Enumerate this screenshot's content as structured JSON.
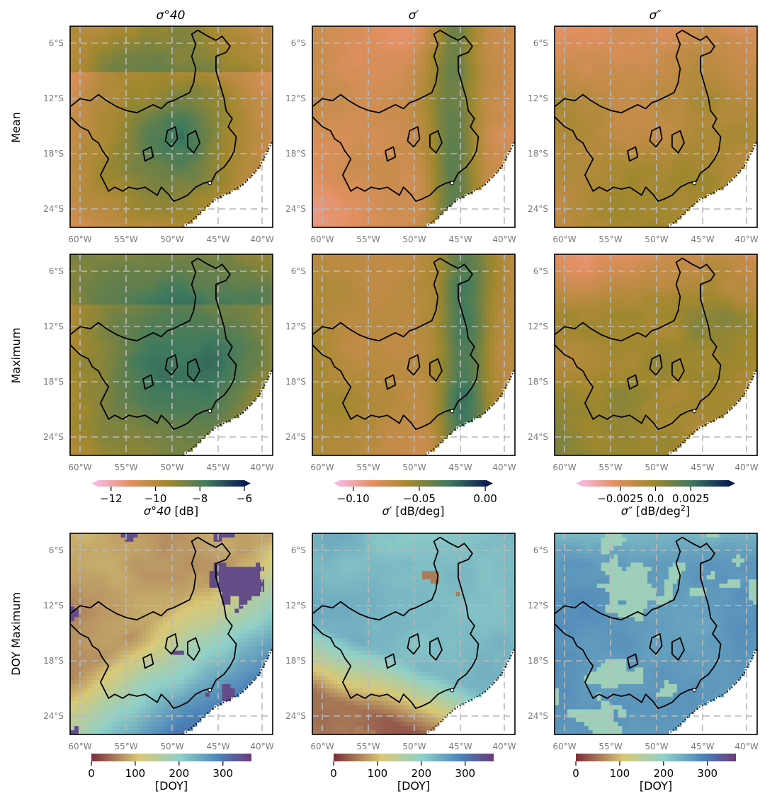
{
  "chart_data": {
    "type": "heatmap",
    "description_kind": "3x3 grid of geographic raster maps",
    "row_labels": [
      "Mean",
      "Maximum",
      "DOY Maximum"
    ],
    "column_titles": [
      "σ°40",
      "σ′",
      "σ″"
    ],
    "lon_ticks": [
      "60°W",
      "55°W",
      "50°W",
      "45°W",
      "40°W"
    ],
    "lon_values": [
      -60,
      -55,
      -50,
      -45,
      -40
    ],
    "lat_ticks": [
      "6°S",
      "12°S",
      "18°S",
      "24°S"
    ],
    "lat_values": [
      -6,
      -12,
      -18,
      -24
    ],
    "xlim": [
      -60.5,
      -39
    ],
    "ylim": [
      -26,
      -4
    ],
    "grid": true,
    "panels": [
      {
        "row": "Mean",
        "column": "σ°40",
        "colormap": "pink-orange-green-navy"
      },
      {
        "row": "Mean",
        "column": "σ′",
        "colormap": "pink-orange-green-navy"
      },
      {
        "row": "Mean",
        "column": "σ″",
        "colormap": "pink-orange-green-navy"
      },
      {
        "row": "Maximum",
        "column": "σ°40",
        "colormap": "pink-orange-green-navy"
      },
      {
        "row": "Maximum",
        "column": "σ′",
        "colormap": "pink-orange-green-navy"
      },
      {
        "row": "Maximum",
        "column": "σ″",
        "colormap": "pink-orange-green-navy"
      },
      {
        "row": "DOY Maximum",
        "column": "σ°40",
        "colormap": "cyclic-brown-yellow-blue-purple"
      },
      {
        "row": "DOY Maximum",
        "column": "σ′",
        "colormap": "cyclic-brown-yellow-blue-purple"
      },
      {
        "row": "DOY Maximum",
        "column": "σ″",
        "colormap": "cyclic-brown-yellow-blue-purple"
      }
    ],
    "colorbars": [
      {
        "id": "cb-sigma40",
        "ticks": [
          "−12",
          "−10",
          "−8",
          "−6"
        ],
        "tick_values": [
          -12,
          -10,
          -8,
          -6
        ],
        "range": [
          -12.6,
          -6
        ],
        "extend": "both",
        "label_prefix": "σ°40",
        "label_unit": " [dB]"
      },
      {
        "id": "cb-sigma-prime",
        "ticks": [
          "−0.10",
          "−0.05",
          "0.00"
        ],
        "tick_values": [
          -0.1,
          -0.05,
          0.0
        ],
        "range": [
          -0.11,
          0.001
        ],
        "extend": "both",
        "label_prefix": "σ′",
        "label_unit": " [dB/deg]"
      },
      {
        "id": "cb-sigma-dprime",
        "ticks": [
          "−0.0025",
          "0.0",
          "0.0025"
        ],
        "tick_values": [
          -0.0025,
          0.0,
          0.0025
        ],
        "range": [
          -0.0052,
          0.0052
        ],
        "extend": "both",
        "label_prefix": "σ″",
        "label_unit": " [dB/deg",
        "label_sup": "2",
        "label_close": "]"
      },
      {
        "id": "cb-doy-1",
        "ticks": [
          "0",
          "100",
          "200",
          "300"
        ],
        "tick_values": [
          0,
          100,
          200,
          300
        ],
        "range": [
          0,
          365
        ],
        "extend": "neither",
        "label": "[DOY]"
      },
      {
        "id": "cb-doy-2",
        "ticks": [
          "0",
          "100",
          "200",
          "300"
        ],
        "tick_values": [
          0,
          100,
          200,
          300
        ],
        "range": [
          0,
          365
        ],
        "extend": "neither",
        "label": "[DOY]"
      },
      {
        "id": "cb-doy-3",
        "ticks": [
          "0",
          "100",
          "200",
          "300"
        ],
        "tick_values": [
          0,
          100,
          200,
          300
        ],
        "range": [
          0,
          365
        ],
        "extend": "neither",
        "label": "[DOY]"
      }
    ],
    "colors": {
      "diverging_low": "#f5b8dc",
      "diverging_mid_low": "#e39062",
      "diverging_mid": "#a0882e",
      "diverging_mid_high": "#3f7a5e",
      "diverging_high": "#0a1d52",
      "doy_0": "#7b2f3b",
      "doy_100": "#d8c977",
      "doy_200": "#8fd0c8",
      "doy_300": "#4a82b8",
      "doy_365": "#6b3a76"
    }
  }
}
